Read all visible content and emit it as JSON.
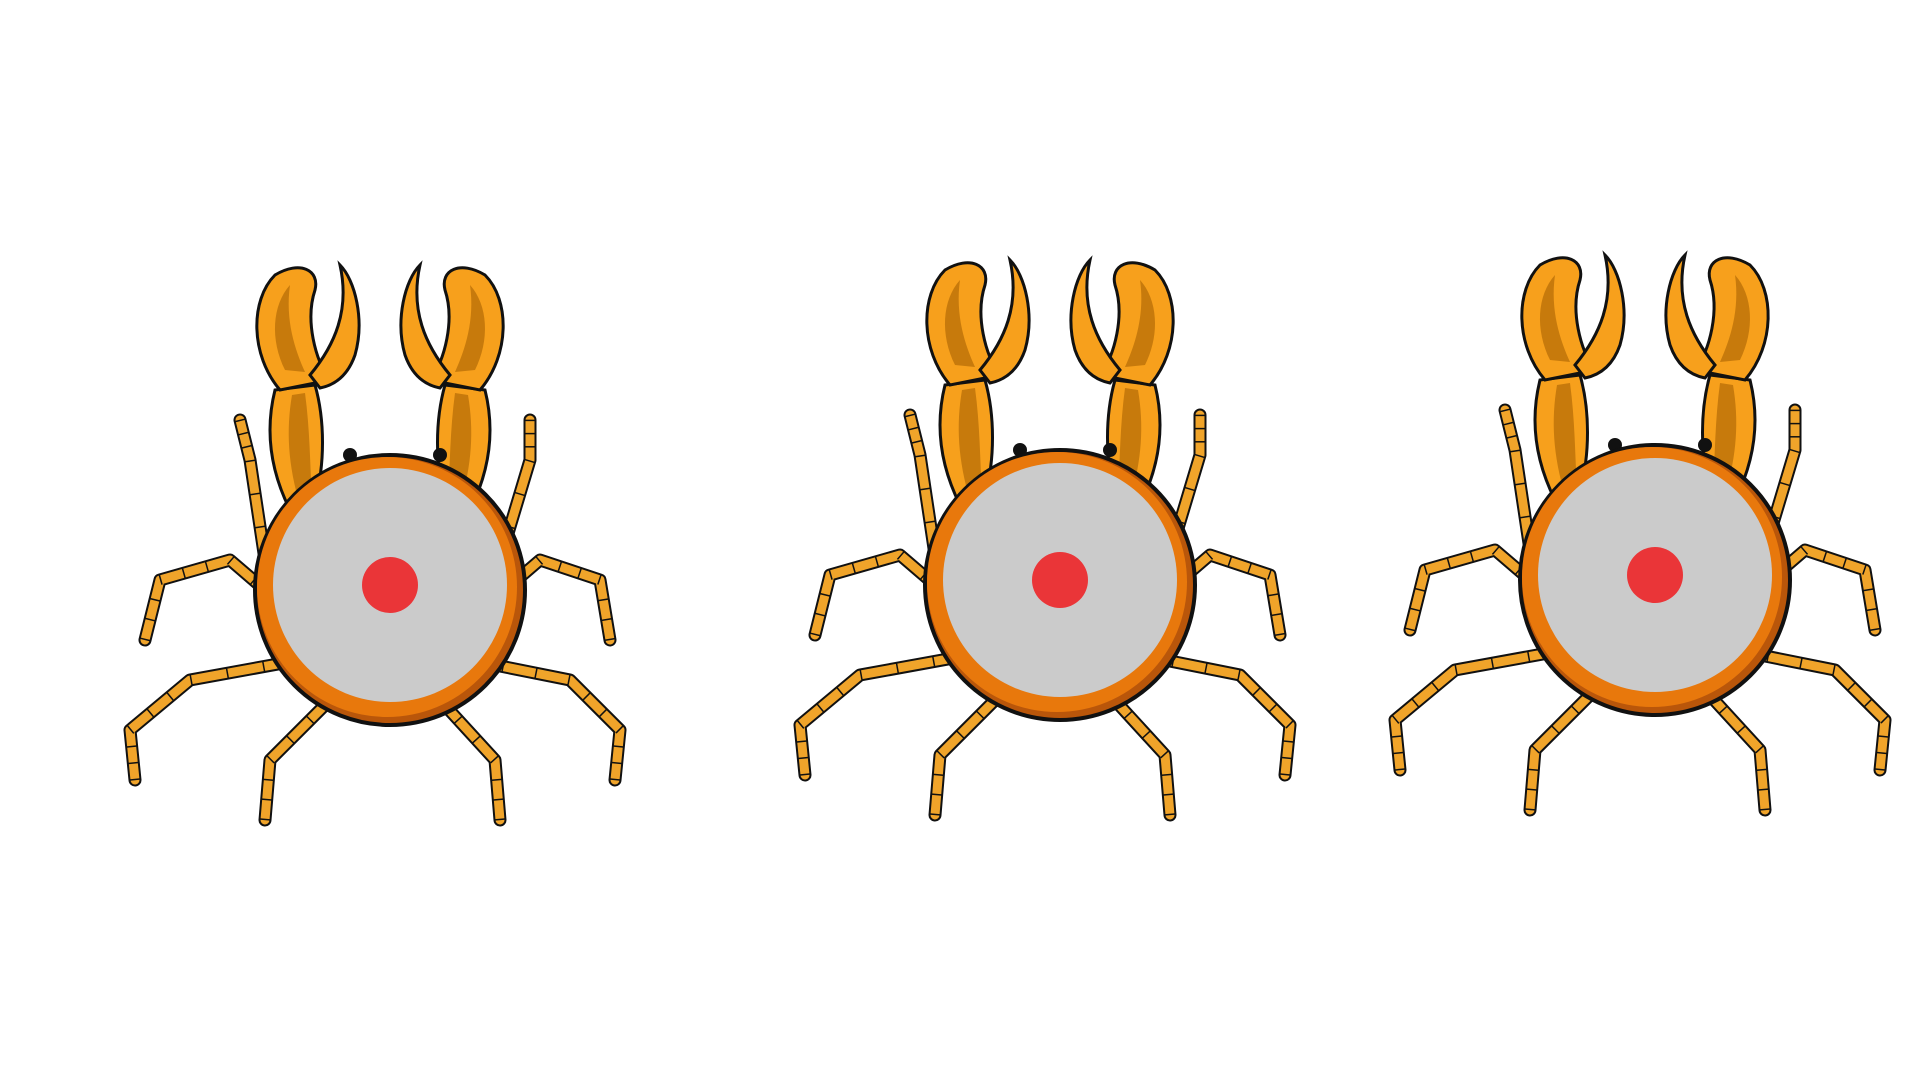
{
  "scene": {
    "background": "#ffffff",
    "crab_count": 3
  },
  "palette": {
    "claw_main": "#f7a01c",
    "claw_shadow": "#c77a0c",
    "leg": "#f0a42a",
    "shell_rim": "#e8780c",
    "shell_rim_dark": "#b9560a",
    "shell_face": "#cbcbcb",
    "target_dot": "#ea3538",
    "eye": "#111111",
    "outline": "#111111"
  },
  "crabs": [
    {
      "id": "crab-1",
      "icon": "crab-icon",
      "target": "red-dot-target"
    },
    {
      "id": "crab-2",
      "icon": "crab-icon",
      "target": "red-dot-target"
    },
    {
      "id": "crab-3",
      "icon": "crab-icon",
      "target": "red-dot-target"
    }
  ]
}
